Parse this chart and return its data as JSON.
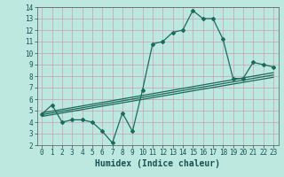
{
  "xlabel": "Humidex (Indice chaleur)",
  "ylabel": "",
  "xlim": [
    -0.5,
    23.5
  ],
  "ylim": [
    2,
    14
  ],
  "xticks": [
    0,
    1,
    2,
    3,
    4,
    5,
    6,
    7,
    8,
    9,
    10,
    11,
    12,
    13,
    14,
    15,
    16,
    17,
    18,
    19,
    20,
    21,
    22,
    23
  ],
  "yticks": [
    2,
    3,
    4,
    5,
    6,
    7,
    8,
    9,
    10,
    11,
    12,
    13,
    14
  ],
  "main_line_x": [
    0,
    1,
    2,
    3,
    4,
    5,
    6,
    7,
    8,
    9,
    10,
    11,
    12,
    13,
    14,
    15,
    16,
    17,
    18,
    19,
    20,
    21,
    22,
    23
  ],
  "main_line_y": [
    4.7,
    5.5,
    4.0,
    4.2,
    4.2,
    4.0,
    3.2,
    2.2,
    4.8,
    3.2,
    6.8,
    10.8,
    11.0,
    11.8,
    12.0,
    13.7,
    13.0,
    13.0,
    11.2,
    7.8,
    7.8,
    9.2,
    9.0,
    8.8
  ],
  "line2_x": [
    0,
    23
  ],
  "line2_y": [
    4.8,
    8.3
  ],
  "line3_x": [
    0,
    23
  ],
  "line3_y": [
    4.65,
    8.1
  ],
  "line4_x": [
    0,
    23
  ],
  "line4_y": [
    4.5,
    7.9
  ],
  "bg_color": "#bde8e0",
  "grid_color": "#c8a0b4",
  "line_color": "#1a6b5a",
  "marker": "D",
  "marker_size": 2.0,
  "line_width": 0.9,
  "tick_label_fontsize": 5.5,
  "xlabel_fontsize": 7.0
}
